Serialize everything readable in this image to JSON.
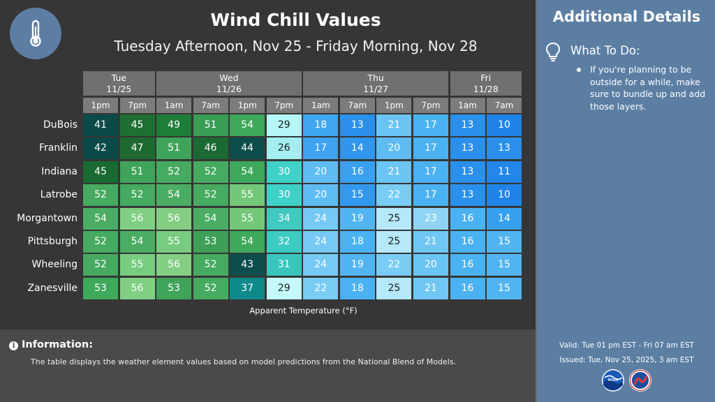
{
  "title": "Wind Chill Values",
  "subtitle": "Tuesday Afternoon, Nov 25 - Friday Morning, Nov 28",
  "icons": {
    "header": "thermometer-icon",
    "todo": "lightbulb-icon",
    "info": "info-icon",
    "logos": [
      "noaa-logo",
      "nws-logo"
    ]
  },
  "days": [
    {
      "label": "Tue\n11/25",
      "span": 2
    },
    {
      "label": "Wed\n11/26",
      "span": 4
    },
    {
      "label": "Thu\n11/27",
      "span": 4
    },
    {
      "label": "Fri\n11/28",
      "span": 2
    }
  ],
  "times": [
    "1pm",
    "7pm",
    "1am",
    "7am",
    "1pm",
    "7pm",
    "1am",
    "7am",
    "1pm",
    "7pm",
    "1am",
    "7am"
  ],
  "locations": [
    {
      "name": "DuBois",
      "values": [
        41,
        45,
        49,
        51,
        54,
        29,
        18,
        13,
        21,
        17,
        13,
        10
      ]
    },
    {
      "name": "Franklin",
      "values": [
        42,
        47,
        51,
        46,
        44,
        26,
        17,
        14,
        20,
        17,
        13,
        13
      ]
    },
    {
      "name": "Indiana",
      "values": [
        45,
        51,
        52,
        52,
        54,
        30,
        20,
        16,
        21,
        17,
        13,
        11
      ]
    },
    {
      "name": "Latrobe",
      "values": [
        52,
        52,
        54,
        52,
        55,
        30,
        20,
        15,
        22,
        17,
        13,
        10
      ]
    },
    {
      "name": "Morgantown",
      "values": [
        54,
        56,
        56,
        54,
        55,
        34,
        24,
        19,
        25,
        23,
        16,
        14
      ]
    },
    {
      "name": "Pittsburgh",
      "values": [
        52,
        54,
        55,
        53,
        54,
        32,
        24,
        18,
        25,
        21,
        16,
        15
      ]
    },
    {
      "name": "Wheeling",
      "values": [
        52,
        55,
        56,
        52,
        43,
        31,
        24,
        19,
        22,
        20,
        16,
        15
      ]
    },
    {
      "name": "Zanesville",
      "values": [
        53,
        56,
        53,
        52,
        37,
        29,
        22,
        18,
        25,
        21,
        16,
        15
      ]
    }
  ],
  "cell_colors": [
    [
      "#0c4a4a",
      "#1f6e34",
      "#1f7d3a",
      "#3a9d55",
      "#3ea85b",
      "#b5f6f7",
      "#3fa6f0",
      "#2b90ec",
      "#6ac4f4",
      "#4bb2f1",
      "#2b90ec",
      "#1f83e8"
    ],
    [
      "#0c4a4a",
      "#1e6a31",
      "#40a35a",
      "#1c6a33",
      "#0d4d4c",
      "#a4eef0",
      "#3da2ef",
      "#2f95ed",
      "#5fbcf3",
      "#4bb2f1",
      "#2b90ec",
      "#2b90ec"
    ],
    [
      "#186a30",
      "#40a35a",
      "#46aa60",
      "#46aa60",
      "#3ea85b",
      "#3fd0c8",
      "#5fbcf3",
      "#3aa0ef",
      "#6ac4f4",
      "#4bb2f1",
      "#2b90ec",
      "#2386e9"
    ],
    [
      "#46aa60",
      "#46aa60",
      "#4bad63",
      "#46aa60",
      "#72c878",
      "#3fd0c8",
      "#5fbcf3",
      "#3399ee",
      "#79ccf4",
      "#4bb2f1",
      "#2b90ec",
      "#1f83e8"
    ],
    [
      "#4bad63",
      "#82cf84",
      "#82cf84",
      "#4bad63",
      "#72c878",
      "#3fc9c0",
      "#76c9f4",
      "#52b5f2",
      "#b5e9fa",
      "#8fd4f6",
      "#4bb2f1",
      "#36a0ef"
    ],
    [
      "#46aa60",
      "#4bad63",
      "#78cc80",
      "#3e9f58",
      "#3ea85b",
      "#3ccbc3",
      "#76c9f4",
      "#4bb2f1",
      "#b5e9fa",
      "#70c7f4",
      "#4bb2f1",
      "#52b5f2"
    ],
    [
      "#46aa60",
      "#78cc80",
      "#82cf84",
      "#46aa60",
      "#0d4d4c",
      "#38c6bd",
      "#76c9f4",
      "#52b5f2",
      "#79ccf4",
      "#6ac4f4",
      "#4bb2f1",
      "#52b5f2"
    ],
    [
      "#3ea85b",
      "#82cf84",
      "#40a35a",
      "#46aa60",
      "#0e8a8a",
      "#c5f8f8",
      "#79ccf4",
      "#4bb2f1",
      "#b5e9fa",
      "#70c7f4",
      "#4bb2f1",
      "#52b5f2"
    ]
  ],
  "dark_text_threshold": "light cells use dark text",
  "legend_label": "Apparent Temperature (°F)",
  "info": {
    "title": "Information:",
    "text": "The table displays the weather element values based on model predictions from the National Blend of Models."
  },
  "side": {
    "title": "Additional Details",
    "todo_title": "What To Do:",
    "advice": "If you're planning to be outside for a while, make sure to bundle up and add those layers.",
    "valid": "Valid: Tue 01 pm EST - Fri 07 am EST",
    "issued": "Issued: Tue, Nov 25, 2025, 3 am EST"
  }
}
